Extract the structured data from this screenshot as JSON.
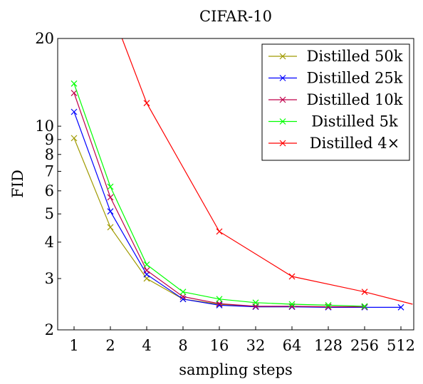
{
  "chart_data": {
    "type": "line",
    "title": "CIFAR-10",
    "xlabel": "sampling steps",
    "ylabel": "FID",
    "x_scale": "log2",
    "y_scale": "log",
    "xlim": [
      0.8,
      640
    ],
    "ylim": [
      2,
      20
    ],
    "xticks": [
      1,
      2,
      4,
      8,
      16,
      32,
      64,
      128,
      256,
      512
    ],
    "xtick_labels": [
      "1",
      "2",
      "4",
      "8",
      "16",
      "32",
      "64",
      "128",
      "256",
      "512"
    ],
    "yticks": [
      2,
      3,
      4,
      5,
      6,
      7,
      8,
      9,
      10,
      20
    ],
    "ytick_labels": [
      "2",
      "3",
      "4",
      "5",
      "6",
      "7",
      "8",
      "9",
      "10",
      "20"
    ],
    "grid": false,
    "legend_position": "top-right",
    "marker": "x",
    "series": [
      {
        "name": "Distilled 50k",
        "color": "#a09a00",
        "x": [
          1,
          2,
          4,
          8,
          16,
          32,
          64,
          128,
          256
        ],
        "y": [
          9.1,
          4.5,
          3.0,
          2.55,
          2.45,
          2.4,
          2.4,
          2.4,
          2.4
        ]
      },
      {
        "name": "Distilled 25k",
        "color": "#0000ff",
        "x": [
          1,
          2,
          4,
          8,
          16,
          32,
          64,
          128,
          256,
          512
        ],
        "y": [
          11.2,
          5.1,
          3.1,
          2.55,
          2.43,
          2.4,
          2.4,
          2.39,
          2.39,
          2.39
        ]
      },
      {
        "name": "Distilled 10k",
        "color": "#c0004a",
        "x": [
          1,
          2,
          4,
          8,
          16,
          32,
          64,
          128,
          256
        ],
        "y": [
          13.0,
          5.7,
          3.2,
          2.6,
          2.46,
          2.41,
          2.41,
          2.4,
          2.4
        ]
      },
      {
        "name": "Distilled 5k",
        "color": "#00ff00",
        "x": [
          1,
          2,
          4,
          8,
          16,
          32,
          64,
          128,
          256
        ],
        "y": [
          14.0,
          6.2,
          3.35,
          2.7,
          2.55,
          2.48,
          2.45,
          2.43,
          2.41
        ]
      },
      {
        "name": "Distilled 4×",
        "color": "#ff0000",
        "x": [
          2.5,
          4,
          16,
          64,
          256,
          640
        ],
        "y": [
          20.0,
          12.0,
          4.35,
          3.05,
          2.7,
          2.45
        ],
        "markers_at": [
          4,
          16,
          64,
          256
        ]
      }
    ]
  }
}
